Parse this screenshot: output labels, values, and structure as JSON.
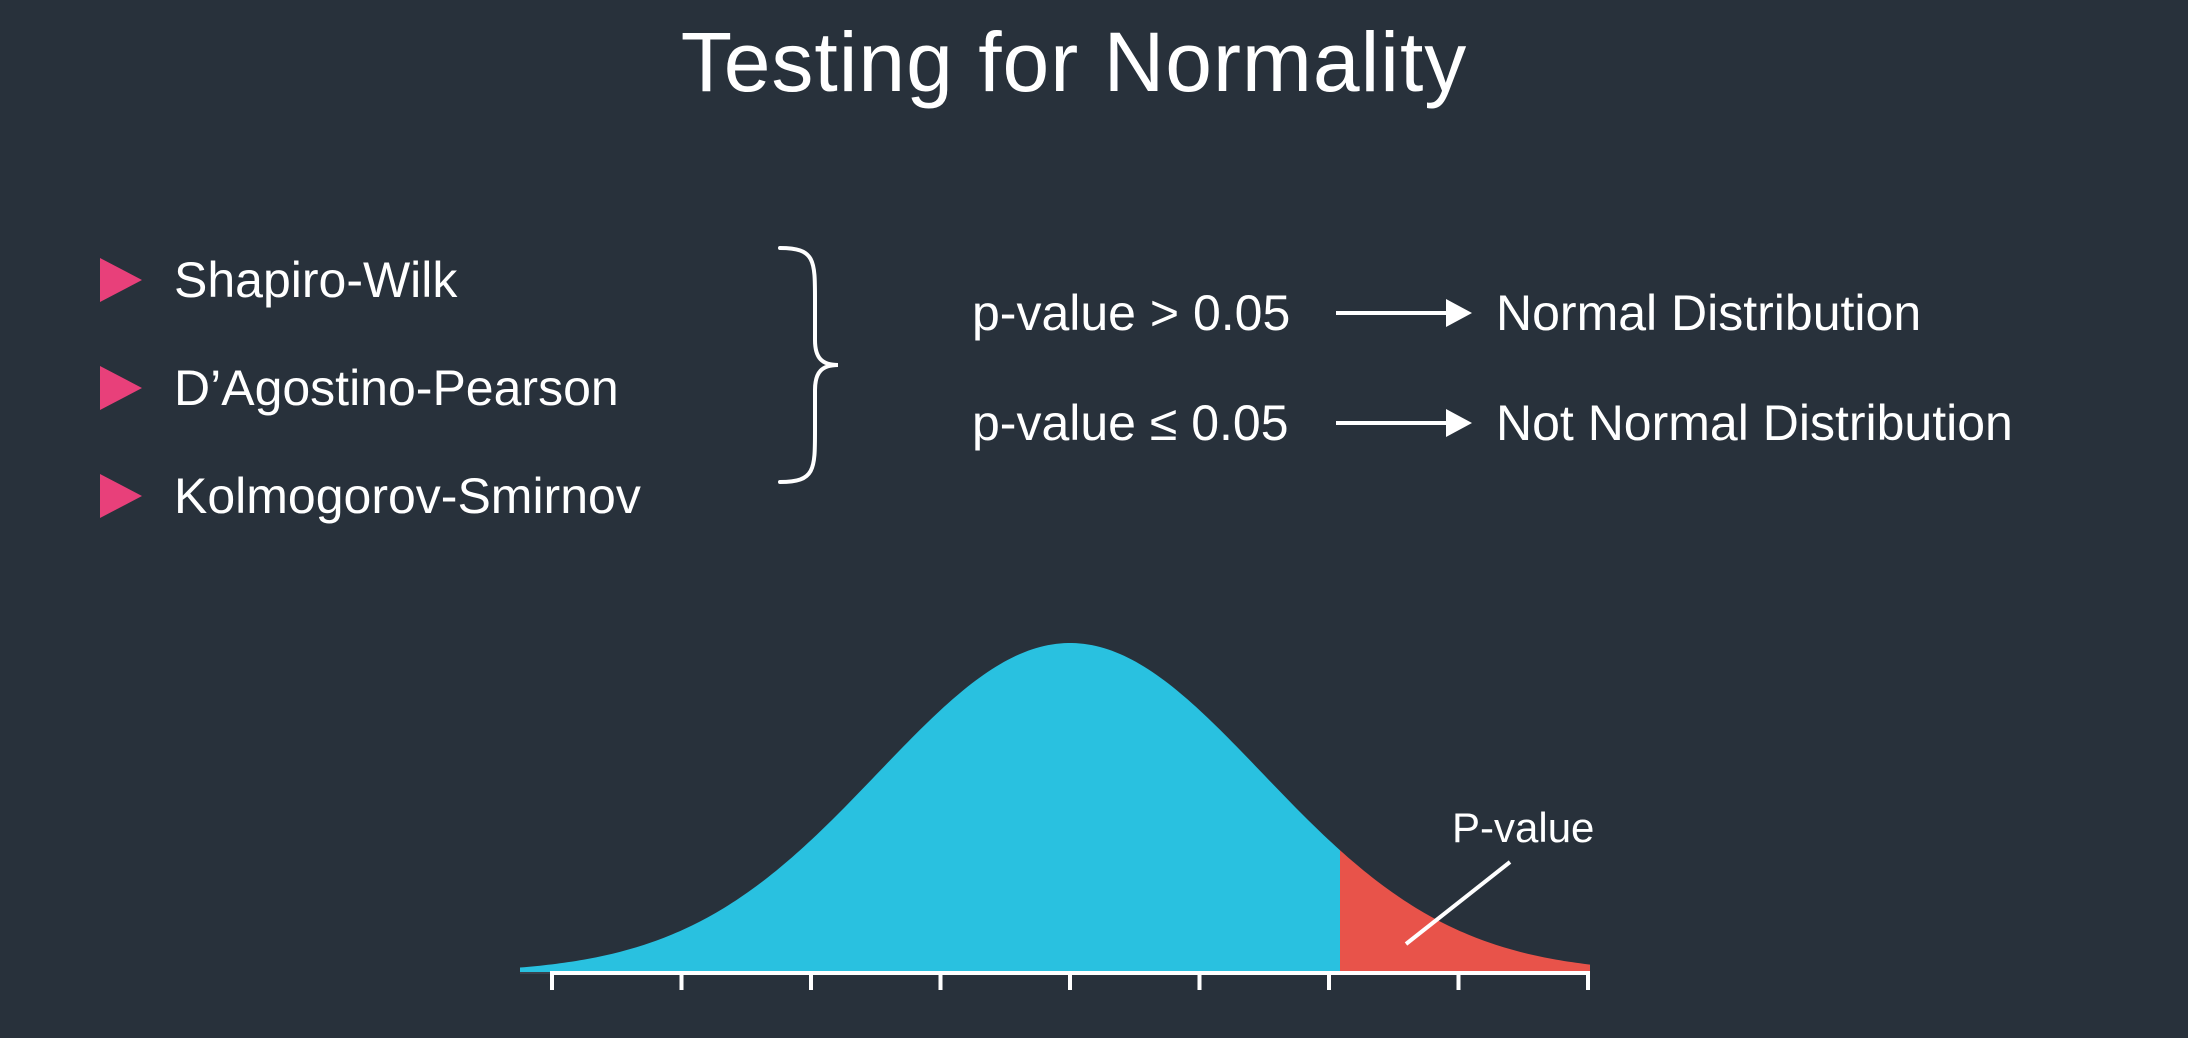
{
  "title": "Testing for Normality",
  "tests": [
    {
      "label": "Shapiro-Wilk"
    },
    {
      "label": "D’Agostino-Pearson"
    },
    {
      "label": "Kolmogorov-Smirnov"
    }
  ],
  "rules": [
    {
      "condition": "p-value > 0.05",
      "result": "Normal Distribution"
    },
    {
      "condition": "p-value ≤ 0.05",
      "result": "Not Normal Distribution"
    }
  ],
  "distribution": {
    "pvalue_label": "P-value",
    "tick_count": 9
  },
  "colors": {
    "background": "#28313b",
    "bullet": "#e8407a",
    "curve_fill": "#29c1e0",
    "tail_fill": "#e8534a",
    "text": "#ffffff"
  }
}
